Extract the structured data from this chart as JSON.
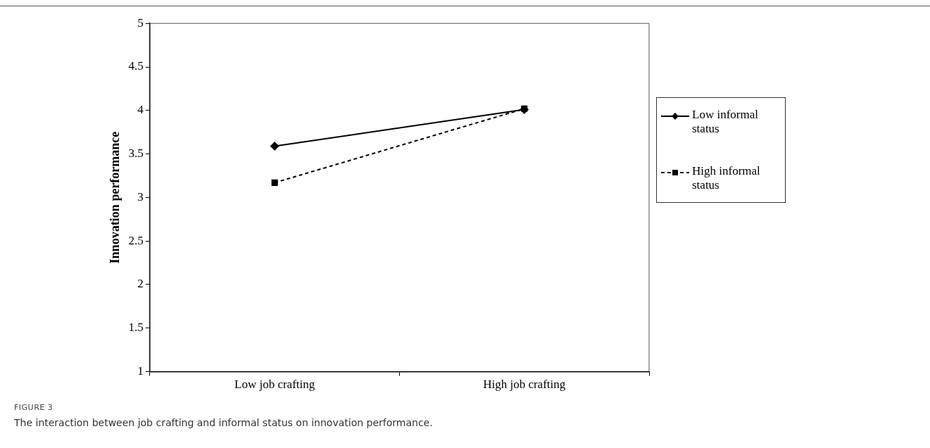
{
  "chart_data": {
    "type": "line",
    "ylabel": "Innovation performance",
    "categories": [
      "Low job crafting",
      "High job crafting"
    ],
    "series": [
      {
        "name": "Low informal status",
        "color": "#000000",
        "values": [
          3.59,
          4.01
        ],
        "marker": "diamond",
        "line_style": "solid"
      },
      {
        "name": "High informal status",
        "color": "#000000",
        "values": [
          3.17,
          4.02
        ],
        "marker": "square",
        "line_style": "dashed"
      }
    ],
    "ylim": [
      1,
      5
    ],
    "yticks": [
      1,
      1.5,
      2,
      2.5,
      3,
      3.5,
      4,
      4.5,
      5
    ],
    "grid": false,
    "legend": "right",
    "annotations": [
      "FIGURE 3",
      "The interaction between job crafting and informal status on innovation performance."
    ]
  }
}
